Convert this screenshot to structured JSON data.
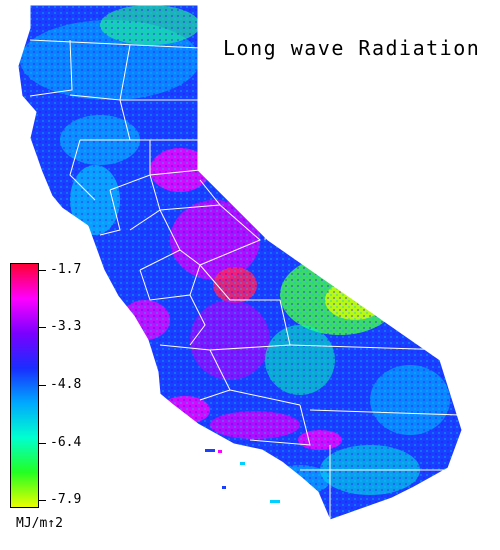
{
  "title": "Long wave Radiation",
  "legend": {
    "ticks": [
      "-1.7",
      "-3.3",
      "-4.8",
      "-6.4",
      "-7.9"
    ],
    "units": "MJ/m↑2",
    "colors": [
      "#ff0033",
      "#ff00ff",
      "#7a00ff",
      "#1a2dff",
      "#00a8ff",
      "#00ffd0",
      "#22ff22",
      "#eaff00"
    ],
    "range": [
      -7.9,
      -1.7
    ]
  },
  "map": {
    "region": "California",
    "boundary_color": "#ffffff",
    "fill_colors": {
      "high": "#ff00ff",
      "mid": "#1a2dff",
      "low": "#00e0ff",
      "lowest": "#aaff00"
    }
  }
}
